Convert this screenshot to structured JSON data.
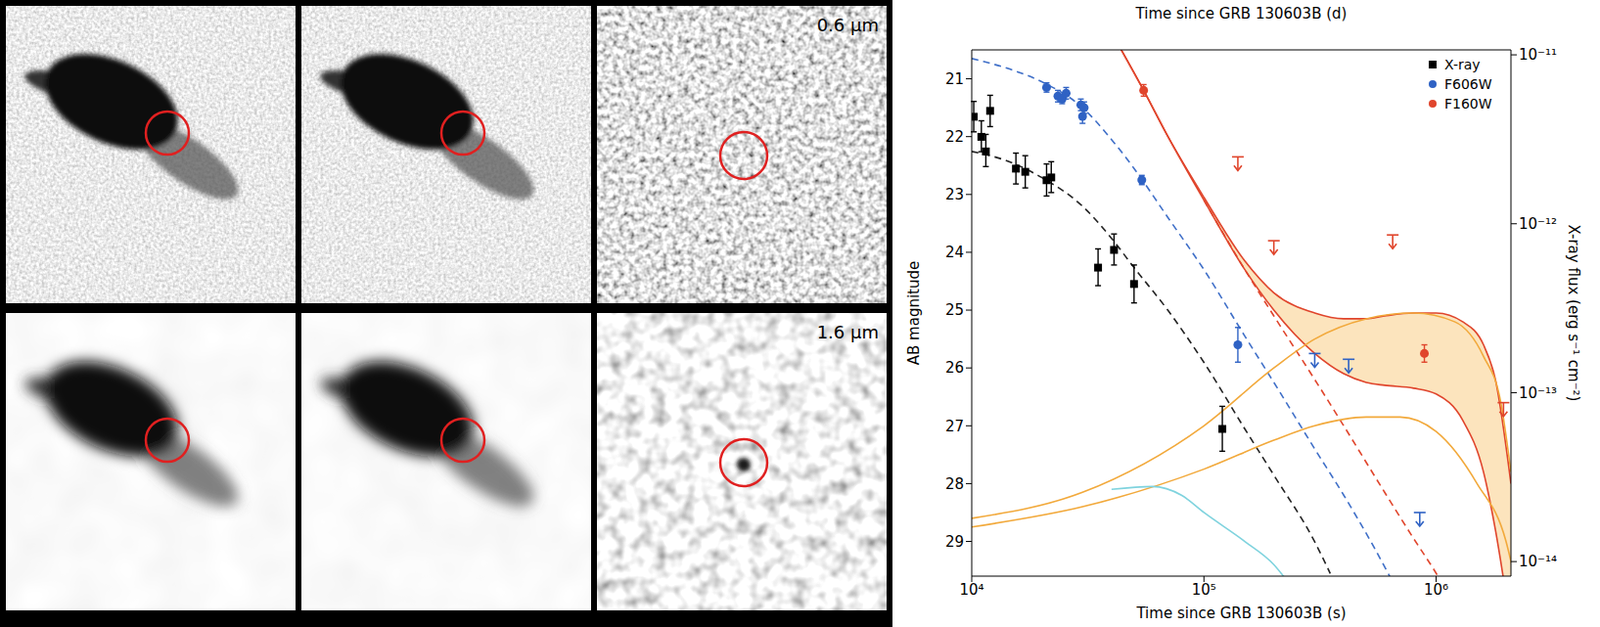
{
  "panels": {
    "labels": [
      "0.6 μm",
      "1.6 μm"
    ]
  },
  "chart_data": {
    "type": "scatter",
    "x_label": "Time since GRB 130603B (s)",
    "x2_label": "Time since GRB 130603B (d)",
    "y_label": "AB magnitude",
    "y2_label": "X-ray flux (erg s⁻¹ cm⁻²)",
    "log": true,
    "legend": "upper right",
    "xlim": [
      10000,
      2100000
    ],
    "xticks": [
      {
        "value": 10000,
        "label": "10⁴"
      },
      {
        "value": 100000,
        "label": "10⁵"
      },
      {
        "value": 1000000,
        "label": "10⁶"
      }
    ],
    "x2lim": [
      0.115741,
      24.3056
    ],
    "x2ticks": [
      1,
      10
    ],
    "ylim": [
      20.5,
      29.6
    ],
    "yticks": [
      21,
      22,
      23,
      24,
      25,
      26,
      27,
      28,
      29
    ],
    "y2lim": [
      8.2e-15,
      1.07e-11
    ],
    "y2ticks": [
      {
        "value": 1e-11,
        "label": "10⁻¹¹"
      },
      {
        "value": 1e-12,
        "label": "10⁻¹²"
      },
      {
        "value": 1e-13,
        "label": "10⁻¹³"
      },
      {
        "value": 1e-14,
        "label": "10⁻¹⁴"
      }
    ],
    "series": [
      {
        "name": "X-ray",
        "color": "#000000",
        "marker": "square",
        "axis": "y2",
        "x": [
          10200,
          11000,
          11500,
          12000,
          15500,
          17000,
          21000,
          22000,
          35000,
          41000,
          50000,
          120000
        ],
        "values": [
          4.3e-12,
          3.27e-12,
          2.68e-12,
          4.66e-12,
          2.12e-12,
          2.03e-12,
          1.81e-12,
          1.88e-12,
          5.5e-13,
          7e-13,
          4.4e-13,
          6.1e-14
        ],
        "errors": [
          [
            8e-13,
            1e-12
          ],
          [
            6e-13,
            8e-13
          ],
          [
            5e-13,
            7e-13
          ],
          [
            9e-13,
            1.1e-12
          ],
          [
            4e-13,
            5e-13
          ],
          [
            4e-13,
            5e-13
          ],
          [
            3.5e-13,
            4.5e-13
          ],
          [
            3.5e-13,
            4.5e-13
          ],
          [
            1.2e-13,
            1.6e-13
          ],
          [
            1.3e-13,
            1.7e-13
          ],
          [
            1e-13,
            1.3e-13
          ],
          [
            1.6e-14,
            2.2e-14
          ]
        ]
      },
      {
        "name": "F606W",
        "color": "#2f62c4",
        "marker": "circle",
        "x": [
          21000,
          23500,
          24500,
          25500,
          29500,
          30000,
          30500,
          54000,
          140000
        ],
        "values": [
          21.15,
          21.3,
          21.35,
          21.25,
          21.45,
          21.65,
          21.5,
          22.75,
          25.6
        ],
        "errors": [
          0.08,
          0.1,
          0.08,
          0.1,
          0.1,
          0.12,
          0.1,
          0.08,
          0.3
        ],
        "upper_limits": {
          "x": [
            300000,
            420000,
            850000
          ],
          "values": [
            25.75,
            25.85,
            28.5
          ]
        }
      },
      {
        "name": "F160W",
        "color": "#e0452c",
        "marker": "circle",
        "x": [
          55000,
          890000
        ],
        "values": [
          21.2,
          25.75
        ],
        "errors": [
          0.1,
          0.15
        ],
        "upper_limits": {
          "x": [
            140000,
            200000,
            650000,
            1950000
          ],
          "values": [
            22.35,
            23.8,
            23.7,
            26.6
          ]
        }
      }
    ],
    "models": [
      {
        "color": "#3f6fc8",
        "line_style": "dashed",
        "x": [
          10000,
          15000,
          20000,
          30000,
          40000,
          50000,
          70000,
          100000,
          150000,
          200000,
          300000,
          400000,
          540000,
          650000
        ],
        "values": [
          20.65,
          20.85,
          21.05,
          21.5,
          22.05,
          22.55,
          23.4,
          24.3,
          25.45,
          26.25,
          27.4,
          28.2,
          29.1,
          29.7
        ]
      },
      {
        "color": "#222222",
        "line_style": "dashed",
        "axis": "y2",
        "x": [
          10000,
          15000,
          20000,
          30000,
          40000,
          50000,
          70000,
          100000,
          150000,
          200000,
          300000,
          350000
        ],
        "values": [
          2.68e-12,
          2.29e-12,
          1.88e-12,
          1.27e-12,
          8.2e-13,
          5.5e-13,
          3.07e-13,
          1.51e-13,
          6.1e-14,
          3.25e-14,
          1.31e-14,
          8.5e-15
        ]
      },
      {
        "color": "#e0452c",
        "line_style": "dashed",
        "x": [
          100000,
          150000,
          200000,
          300000,
          400000,
          600000,
          800000,
          1000000,
          1200000
        ],
        "values": [
          23.1,
          24.3,
          25.1,
          26.2,
          27.0,
          28.15,
          28.95,
          29.55,
          30.1
        ]
      },
      {
        "color": "#f2a93b",
        "line_style": "solid",
        "x": [
          10000,
          30000,
          100000,
          200000,
          300000,
          500000,
          700000,
          1000000,
          1500000,
          2000000,
          2200000
        ],
        "values": [
          28.75,
          28.4,
          27.75,
          27.25,
          27.0,
          26.85,
          26.85,
          27.1,
          28.0,
          29.0,
          29.7
        ]
      },
      {
        "color": "#f2a93b",
        "line_style": "solid",
        "x": [
          10000,
          30000,
          100000,
          200000,
          300000,
          500000,
          800000,
          1200000,
          1600000,
          1900000,
          2100000
        ],
        "values": [
          28.6,
          28.15,
          27.0,
          26.0,
          25.5,
          25.15,
          25.05,
          25.2,
          25.8,
          26.6,
          27.8
        ]
      },
      {
        "color": "#7fd3de",
        "line_style": "solid",
        "x": [
          40000,
          60000,
          80000,
          100000,
          150000,
          200000,
          240000
        ],
        "values": [
          28.1,
          28.05,
          28.2,
          28.5,
          29.0,
          29.4,
          29.8
        ]
      }
    ],
    "band": {
      "color": "#e0452c",
      "x": [
        40000,
        55000,
        70000,
        100000,
        150000,
        200000,
        300000,
        400000,
        500000,
        600000,
        800000,
        1000000,
        1300000,
        1600000,
        1800000,
        2100000
      ],
      "upper": [
        20.2,
        21.2,
        22.0,
        23.05,
        24.15,
        24.7,
        25.05,
        25.15,
        25.15,
        25.1,
        25.05,
        25.05,
        25.2,
        25.6,
        26.2,
        28.0
      ],
      "lower": [
        20.2,
        21.2,
        22.0,
        23.1,
        24.3,
        25.0,
        25.75,
        26.1,
        26.25,
        26.3,
        26.35,
        26.45,
        26.9,
        27.8,
        28.8,
        30.5
      ]
    }
  }
}
